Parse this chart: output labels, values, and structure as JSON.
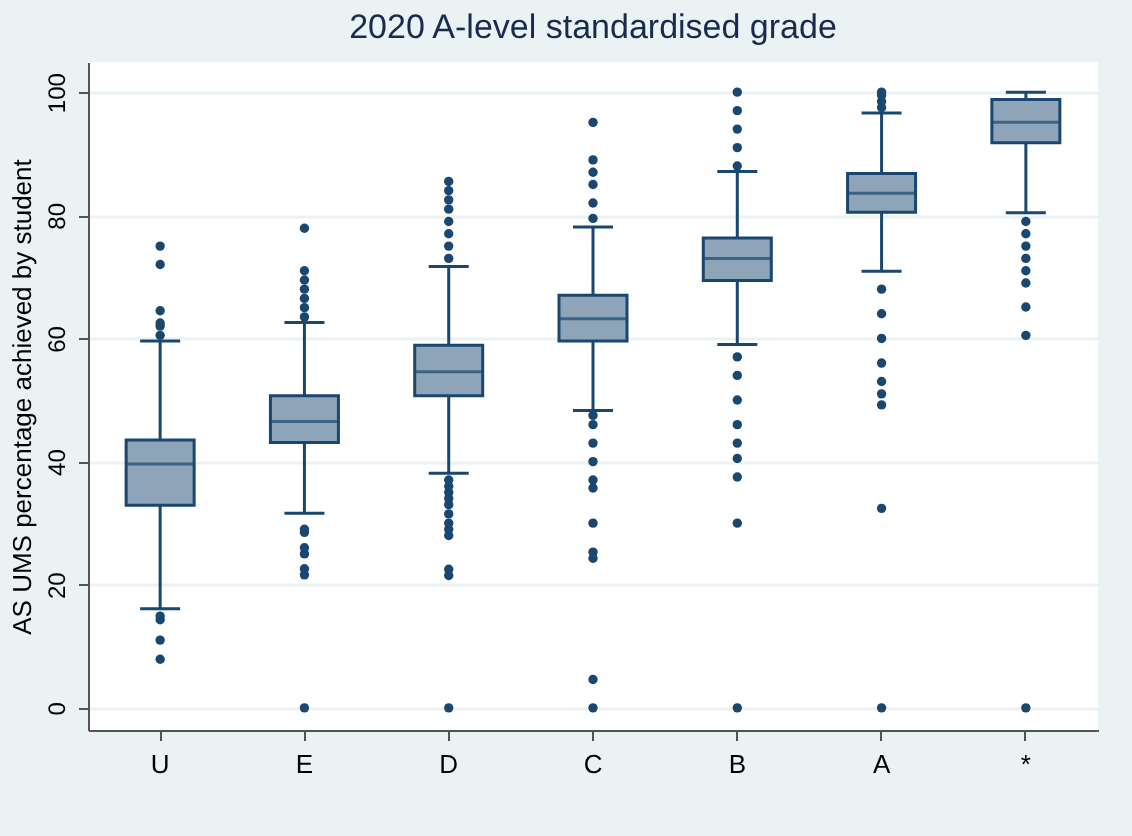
{
  "chart_data": {
    "type": "box",
    "title": "2020 A-level standardised grade",
    "ylabel": "AS UMS percentage achieved by student",
    "categories": [
      "U",
      "E",
      "D",
      "C",
      "B",
      "A",
      "*"
    ],
    "color": "#8ea4b9",
    "boxes": [
      {
        "low": 16.1,
        "q1": 32.9,
        "median": 39.6,
        "q3": 43.5,
        "high": 59.6,
        "outliers": [
          7.9,
          11,
          14.3,
          14.9,
          60.5,
          62,
          62.5,
          64.5,
          72,
          75
        ]
      },
      {
        "low": 31.6,
        "q1": 43.1,
        "median": 46.5,
        "q3": 50.7,
        "high": 62.6,
        "outliers": [
          0,
          21.6,
          22.6,
          25,
          26,
          28.5,
          29,
          63.5,
          65,
          66.5,
          68,
          69.5,
          71,
          77.9
        ]
      },
      {
        "low": 38.1,
        "q1": 50.7,
        "median": 54.6,
        "q3": 58.9,
        "high": 71.7,
        "outliers": [
          0,
          21.5,
          22.5,
          28,
          29,
          30,
          31.5,
          33,
          34,
          35,
          36,
          37,
          73,
          75,
          77,
          79,
          81,
          82.5,
          84,
          85.5
        ]
      },
      {
        "low": 48.3,
        "q1": 59.6,
        "median": 63.2,
        "q3": 67,
        "high": 78.1,
        "outliers": [
          0,
          4.6,
          24.3,
          25.3,
          30,
          35.7,
          37,
          40,
          43,
          46,
          47.5,
          79.5,
          82,
          85,
          87,
          89,
          95.1
        ]
      },
      {
        "low": 59,
        "q1": 69.4,
        "median": 73,
        "q3": 76.3,
        "high": 87.1,
        "outliers": [
          0,
          30,
          37.5,
          40.5,
          43,
          46,
          50,
          54,
          57,
          88,
          91,
          94,
          97,
          100
        ]
      },
      {
        "low": 70.9,
        "q1": 80.5,
        "median": 83.6,
        "q3": 86.8,
        "high": 96.6,
        "outliers": [
          0,
          32.4,
          49.2,
          51,
          53,
          56,
          60,
          64,
          68,
          97.5,
          98.5,
          99.5,
          100
        ]
      },
      {
        "low": 80.4,
        "q1": 91.8,
        "median": 95.1,
        "q3": 98.8,
        "high": 100,
        "outliers": [
          0,
          60.5,
          65.1,
          69,
          71,
          73,
          75,
          77,
          79
        ]
      }
    ],
    "ylim": [
      -3.6,
      104.9
    ],
    "yticks": [
      0,
      20,
      40,
      60,
      80,
      100
    ],
    "grid": "y"
  }
}
